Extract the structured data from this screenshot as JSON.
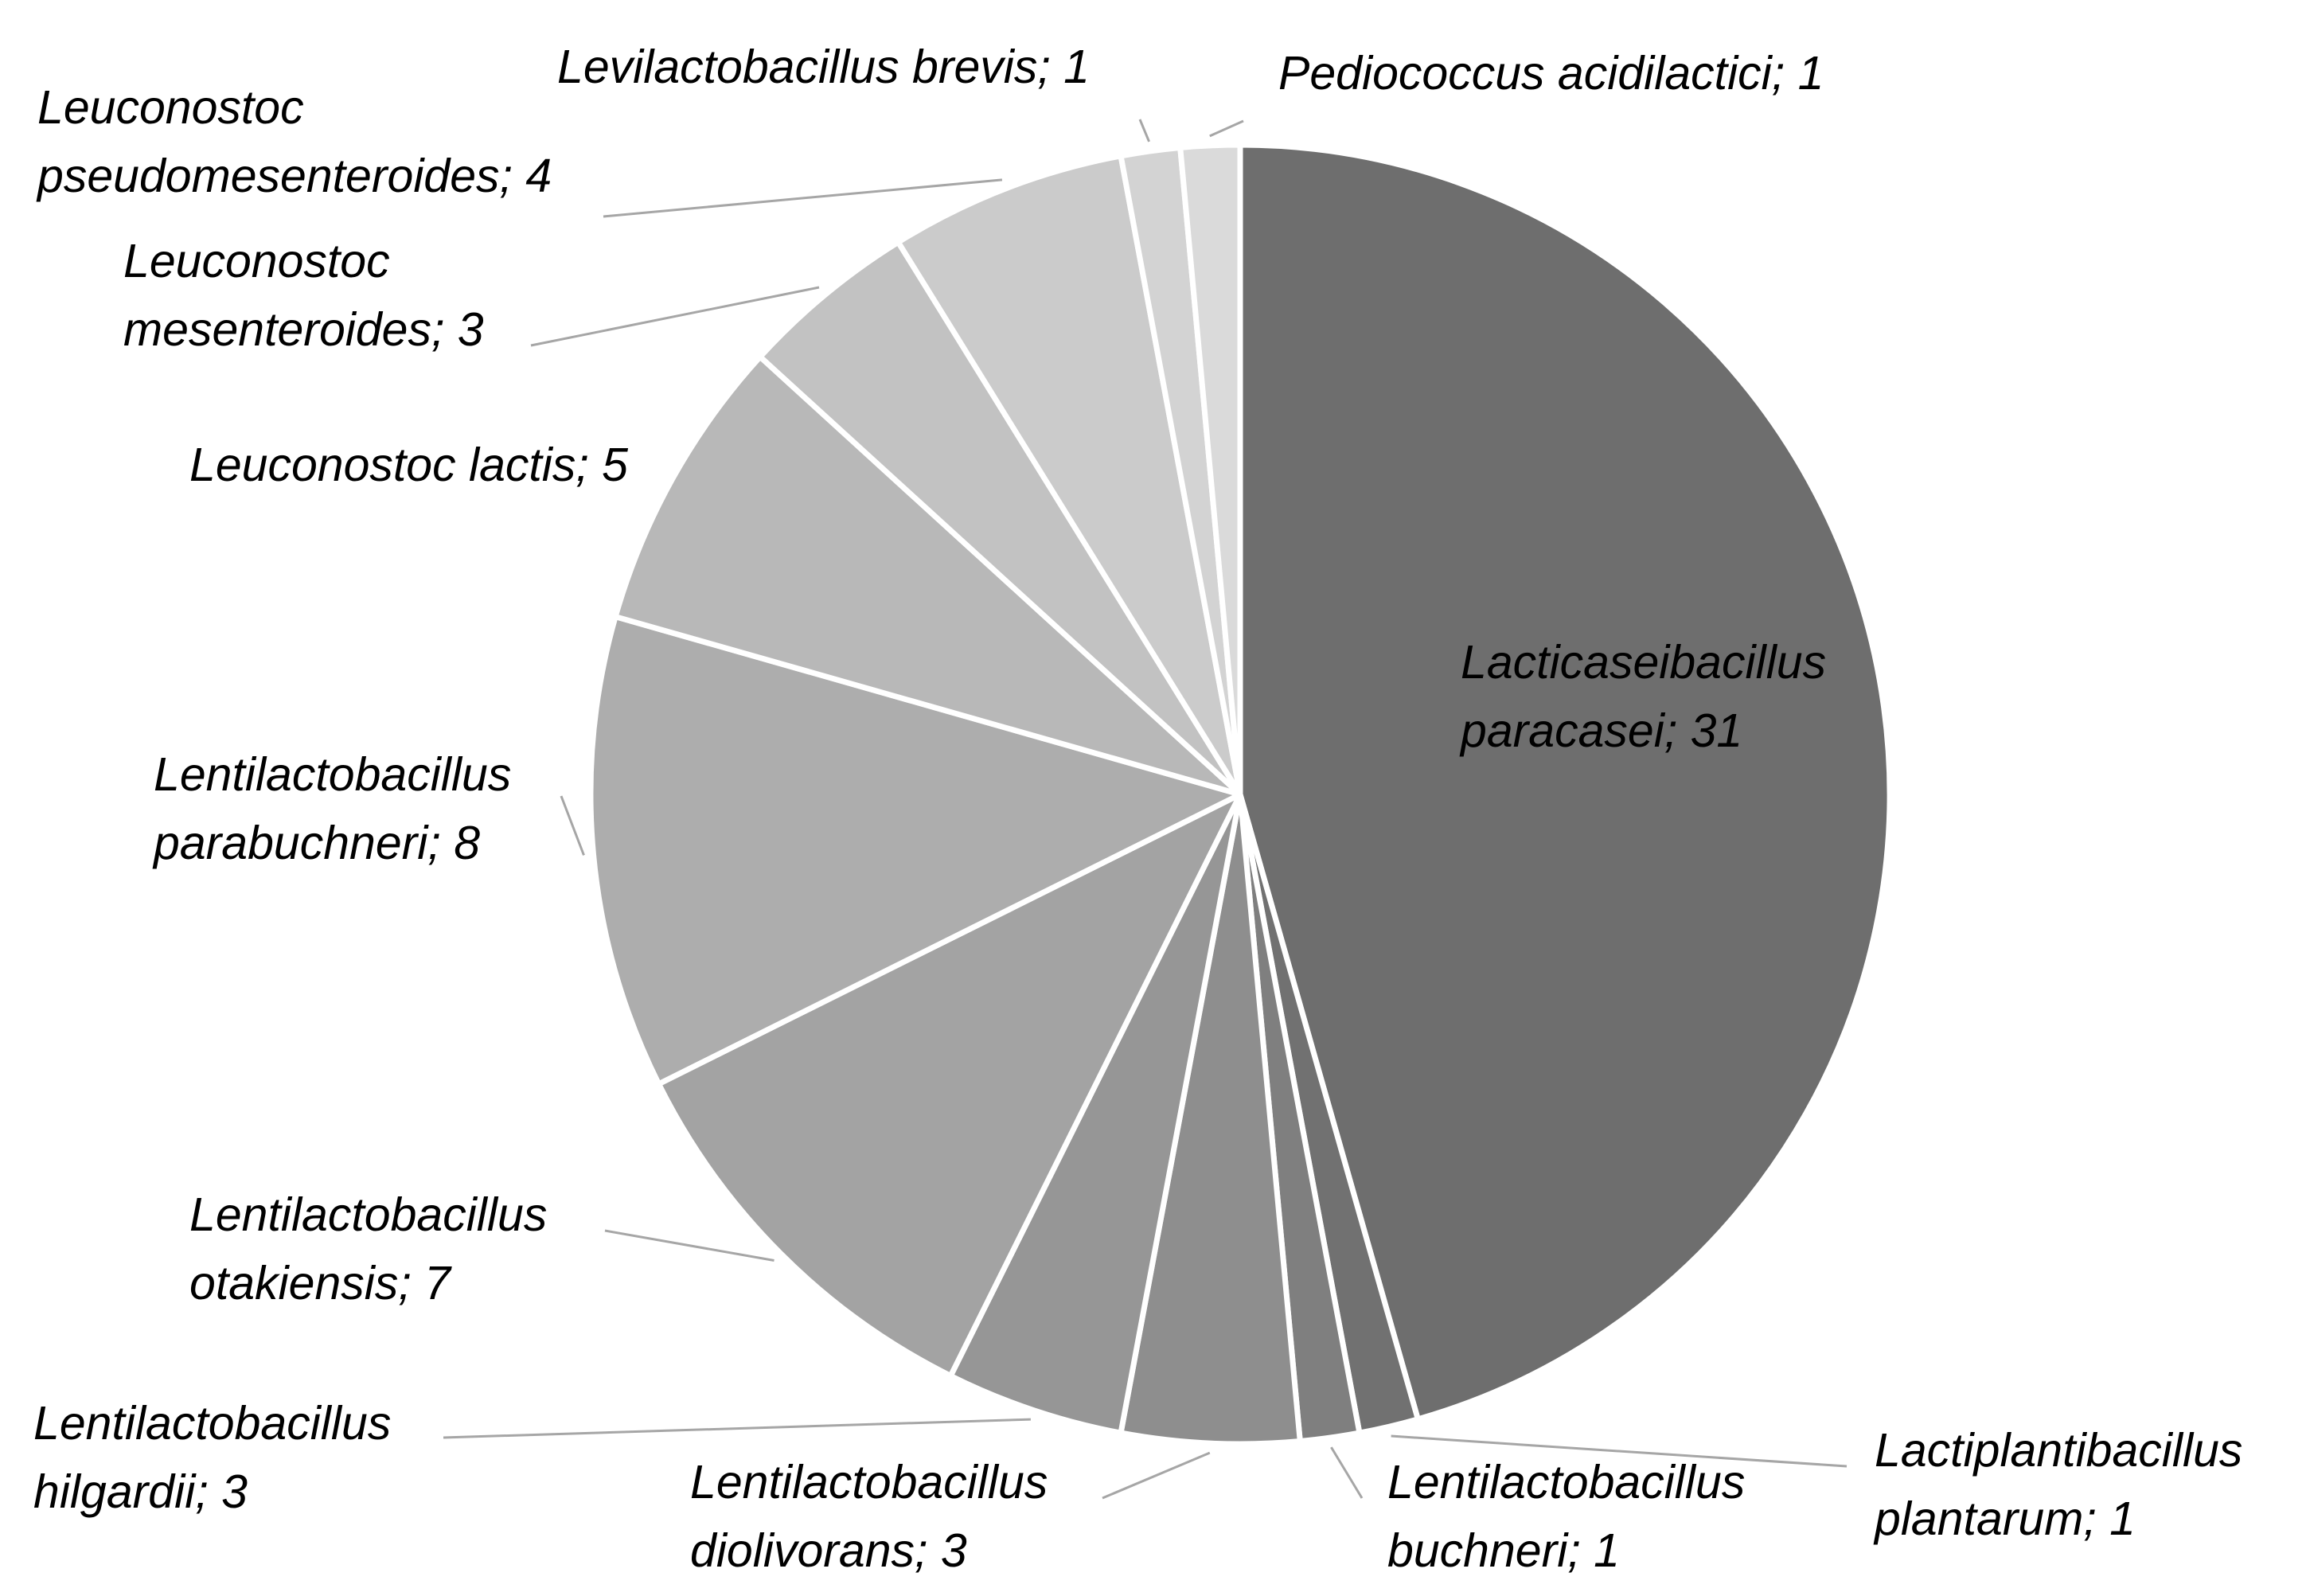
{
  "chart_data": {
    "type": "pie",
    "start_angle_deg": 0,
    "direction": "clockwise",
    "slices": [
      {
        "name": "Lacticaseibacillus paracasei",
        "value": 31,
        "label_lines": [
          "Lacticaseibacillus",
          "paracasei; 31"
        ],
        "color": "#6e6e6e"
      },
      {
        "name": "Lactiplantibacillus plantarum",
        "value": 1,
        "label_lines": [
          "Lactiplantibacillus",
          "plantarum; 1"
        ],
        "color": "#717171"
      },
      {
        "name": "Lentilactobacillus buchneri",
        "value": 1,
        "label_lines": [
          "Lentilactobacillus",
          "buchneri; 1"
        ],
        "color": "#7f7f7f"
      },
      {
        "name": "Lentilactobacillus diolivorans",
        "value": 3,
        "label_lines": [
          "Lentilactobacillus",
          "diolivorans; 3"
        ],
        "color": "#8e8e8e"
      },
      {
        "name": "Lentilactobacillus hilgardii",
        "value": 3,
        "label_lines": [
          "Lentilactobacillus",
          "hilgardii; 3"
        ],
        "color": "#969696"
      },
      {
        "name": "Lentilactobacillus otakiensis",
        "value": 7,
        "label_lines": [
          "Lentilactobacillus",
          "otakiensis; 7"
        ],
        "color": "#a3a3a3"
      },
      {
        "name": "Lentilactobacillus parabuchneri",
        "value": 8,
        "label_lines": [
          "Lentilactobacillus",
          "parabuchneri; 8"
        ],
        "color": "#adadad"
      },
      {
        "name": "Leuconostoc lactis",
        "value": 5,
        "label_lines": [
          "Leuconostoc lactis; 5"
        ],
        "color": "#b8b8b8"
      },
      {
        "name": "Leuconostoc mesenteroides",
        "value": 3,
        "label_lines": [
          "Leuconostoc",
          "mesenteroides; 3"
        ],
        "color": "#c2c2c2"
      },
      {
        "name": "Leuconostoc pseudomesenteroides",
        "value": 4,
        "label_lines": [
          "Leuconostoc",
          "pseudomesenteroides; 4"
        ],
        "color": "#cbcbcb"
      },
      {
        "name": "Levilactobacillus brevis",
        "value": 1,
        "label_lines": [
          "Levilactobacillus brevis; 1"
        ],
        "color": "#d3d3d3"
      },
      {
        "name": "Pediococcus acidilactici",
        "value": 1,
        "label_lines": [
          "Pediococcus acidilactici; 1"
        ],
        "color": "#dadada"
      }
    ],
    "legend": "none",
    "data_labels": "category; value"
  }
}
